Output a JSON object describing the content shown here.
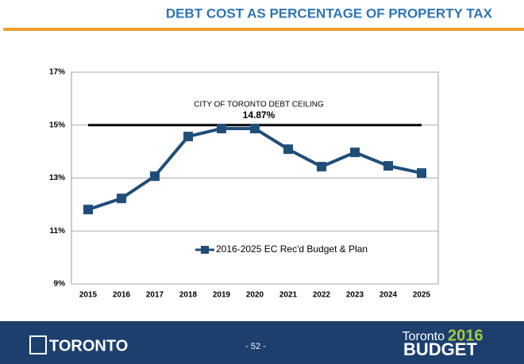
{
  "chart_data": {
    "type": "line",
    "title": "DEBT COST AS PERCENTAGE OF PROPERTY TAX",
    "categories": [
      "2015",
      "2016",
      "2017",
      "2018",
      "2019",
      "2020",
      "2021",
      "2022",
      "2023",
      "2024",
      "2025"
    ],
    "series": [
      {
        "name": "2016-2025 EC Rec'd Budget & Plan",
        "color": "#1f4e79",
        "values": [
          11.81,
          12.23,
          13.07,
          14.57,
          14.87,
          14.87,
          14.09,
          13.43,
          13.97,
          13.46,
          13.19
        ]
      }
    ],
    "ceiling": {
      "value": 15,
      "label": "CITY OF TORONTO DEBT CEILING",
      "color": "#000000"
    },
    "peak_label": "14.87%",
    "ylim": [
      9,
      17
    ],
    "yticks": [
      {
        "value": 9,
        "label": "9%"
      },
      {
        "value": 11,
        "label": "11%"
      },
      {
        "value": 13,
        "label": "13%"
      },
      {
        "value": 15,
        "label": "15%"
      },
      {
        "value": 17,
        "label": "17%"
      }
    ],
    "grid": true
  },
  "footer": {
    "logo": "TORONTO",
    "page": "- 52 -",
    "brand": "Toronto",
    "year": "2016",
    "budget": "BUDGET"
  }
}
